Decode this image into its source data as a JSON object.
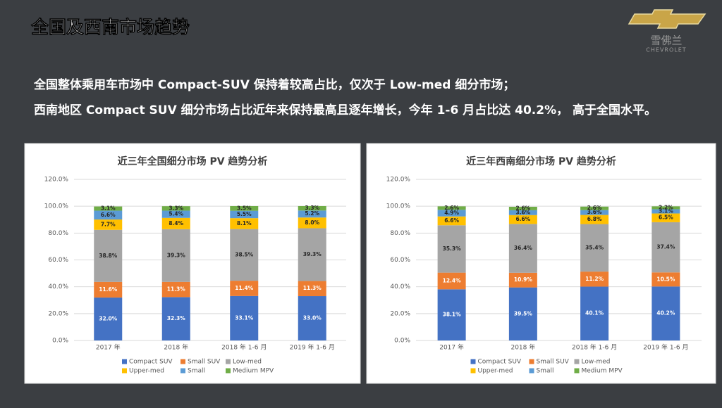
{
  "header": {
    "title": "全国及西南市场趋势",
    "lines": [
      "全国整体乘用车市场中 Compact-SUV 保持着较高占比，仅次于 Low-med 细分市场；",
      "西南地区 Compact SUV 细分市场占比近年来保持最高且逐年增长，今年 1-6 月占比达 40.2%， 高于全国水平。"
    ]
  },
  "logo": {
    "name": "雪佛兰",
    "brand": "CHEVROLET"
  },
  "chart_data": [
    {
      "type": "bar",
      "stacked": true,
      "title": "近三年全国细分市场 PV 趋势分析",
      "categories": [
        "2017 年",
        "2018 年",
        "2018 年 1-6 月",
        "2019 年 1-6 月"
      ],
      "ylim": [
        0,
        120
      ],
      "yticks": [
        {
          "value": 0,
          "label": "0.0%"
        },
        {
          "value": 20,
          "label": "20.0%"
        },
        {
          "value": 40,
          "label": "40.0%"
        },
        {
          "value": 60,
          "label": "60.0%"
        },
        {
          "value": 80,
          "label": "80.0%"
        },
        {
          "value": 100,
          "label": "100.0%"
        },
        {
          "value": 120,
          "label": "120.0%"
        }
      ],
      "grid": true,
      "legend": "bottom",
      "series": [
        {
          "name": "Compact SUV",
          "color": "#4472c4",
          "values": [
            32.0,
            32.3,
            33.1,
            33.0
          ],
          "value_labels": [
            "32.0%",
            "32.3%",
            "33.1%",
            "33.0%"
          ]
        },
        {
          "name": "Small SUV",
          "color": "#ed7d31",
          "values": [
            11.6,
            11.3,
            11.4,
            11.3
          ],
          "value_labels": [
            "11.6%",
            "11.3%",
            "11.4%",
            "11.3%"
          ]
        },
        {
          "name": "Low-med",
          "color": "#a5a5a5",
          "values": [
            38.8,
            39.3,
            38.5,
            39.3
          ],
          "value_labels": [
            "38.8%",
            "39.3%",
            "38.5%",
            "39.3%"
          ]
        },
        {
          "name": "Upper-med",
          "color": "#ffc000",
          "values": [
            7.7,
            8.4,
            8.1,
            8.0
          ],
          "value_labels": [
            "7.7%",
            "8.4%",
            "8.1%",
            "8.0%"
          ]
        },
        {
          "name": "Small",
          "color": "#5b9bd5",
          "values": [
            6.6,
            5.4,
            5.5,
            5.2
          ],
          "value_labels": [
            "6.6%",
            "5.4%",
            "5.5%",
            "5.2%"
          ]
        },
        {
          "name": "Medium MPV",
          "color": "#70ad47",
          "values": [
            3.1,
            3.3,
            3.5,
            3.3
          ],
          "value_labels": [
            "3.1%",
            "3.3%",
            "3.5%",
            "3.3%"
          ]
        }
      ]
    },
    {
      "type": "bar",
      "stacked": true,
      "title": "近三年西南细分市场 PV 趋势分析",
      "categories": [
        "2017 年",
        "2018 年",
        "2018 年 1-6 月",
        "2019 年 1-6 月"
      ],
      "ylim": [
        0,
        120
      ],
      "yticks": [
        {
          "value": 0,
          "label": "0.0%"
        },
        {
          "value": 20,
          "label": "20.0%"
        },
        {
          "value": 40,
          "label": "40.0%"
        },
        {
          "value": 60,
          "label": "60.0%"
        },
        {
          "value": 80,
          "label": "80.0%"
        },
        {
          "value": 100,
          "label": "100.0%"
        },
        {
          "value": 120,
          "label": "120.0%"
        }
      ],
      "grid": true,
      "legend": "bottom",
      "series": [
        {
          "name": "Compact SUV",
          "color": "#4472c4",
          "values": [
            38.1,
            39.5,
            40.1,
            40.2
          ],
          "value_labels": [
            "38.1%",
            "39.5%",
            "40.1%",
            "40.2%"
          ]
        },
        {
          "name": "Small SUV",
          "color": "#ed7d31",
          "values": [
            12.4,
            10.9,
            11.2,
            10.5
          ],
          "value_labels": [
            "12.4%",
            "10.9%",
            "11.2%",
            "10.5%"
          ]
        },
        {
          "name": "Low-med",
          "color": "#a5a5a5",
          "values": [
            35.3,
            36.4,
            35.4,
            37.4
          ],
          "value_labels": [
            "35.3%",
            "36.4%",
            "35.4%",
            "37.4%"
          ]
        },
        {
          "name": "Upper-med",
          "color": "#ffc000",
          "values": [
            6.6,
            6.6,
            6.8,
            6.5
          ],
          "value_labels": [
            "6.6%",
            "6.6%",
            "6.8%",
            "6.5%"
          ]
        },
        {
          "name": "Small",
          "color": "#5b9bd5",
          "values": [
            4.9,
            3.6,
            3.6,
            3.1
          ],
          "value_labels": [
            "4.9%",
            "3.6%",
            "3.6%",
            "3.1%"
          ]
        },
        {
          "name": "Medium MPV",
          "color": "#70ad47",
          "values": [
            2.6,
            2.6,
            2.6,
            2.2
          ],
          "value_labels": [
            "2.6%",
            "2.6%",
            "2.6%",
            "2.2%"
          ]
        }
      ]
    }
  ]
}
